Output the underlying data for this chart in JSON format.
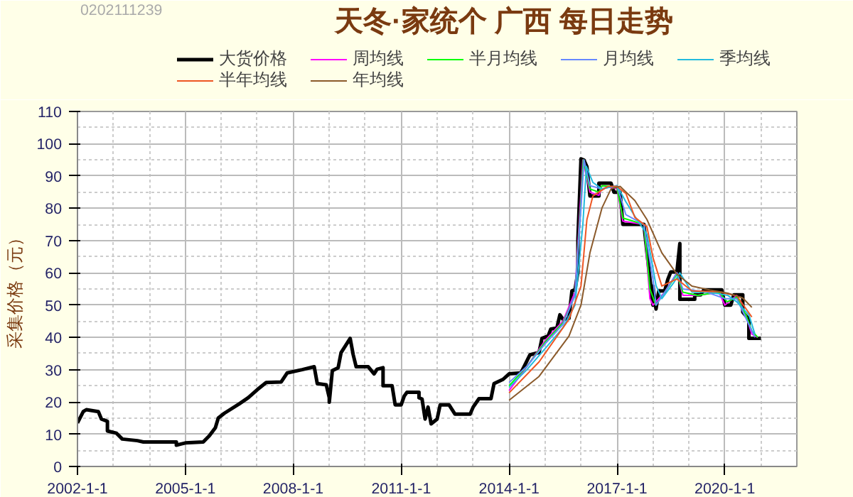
{
  "chart_data": {
    "type": "line",
    "title": "天冬·家统个 广西 每日走势",
    "ylabel": "采集价格（元）",
    "annotations": [
      "0202111239"
    ],
    "xlim": [
      "2002-01-01",
      "2022-01-01"
    ],
    "xticks": [
      {
        "value": "2002-01-01",
        "label": "2002-1-1"
      },
      {
        "value": "2005-01-01",
        "label": "2005-1-1"
      },
      {
        "value": "2008-01-01",
        "label": "2008-1-1"
      },
      {
        "value": "2011-01-01",
        "label": "2011-1-1"
      },
      {
        "value": "2014-01-01",
        "label": "2014-1-1"
      },
      {
        "value": "2017-01-01",
        "label": "2017-1-1"
      },
      {
        "value": "2020-01-01",
        "label": "2020-1-1"
      }
    ],
    "ylim": [
      0,
      110
    ],
    "yticks": [
      0,
      10,
      20,
      30,
      40,
      50,
      60,
      70,
      80,
      90,
      100,
      110
    ],
    "grid": true,
    "legend": "top",
    "line_style": "solid",
    "series": [
      {
        "name": "大货价格",
        "color": "#000000",
        "x": [
          "2002-01",
          "2002-03",
          "2002-04",
          "2002-08",
          "2002-09",
          "2002-11",
          "2002-11",
          "2003-02",
          "2003-04",
          "2003-09",
          "2003-11",
          "2004-10",
          "2004-10",
          "2005-01",
          "2005-07",
          "2005-09",
          "2005-11",
          "2005-12",
          "2006-02",
          "2006-07",
          "2006-10",
          "2007-01",
          "2007-04",
          "2007-09",
          "2007-11",
          "2008-04",
          "2008-08",
          "2008-09",
          "2008-12",
          "2009-01",
          "2009-01",
          "2009-02",
          "2009-04",
          "2009-05",
          "2009-07",
          "2009-08",
          "2009-09",
          "2009-10",
          "2010-02",
          "2010-04",
          "2010-05",
          "2010-07",
          "2010-07",
          "2010-10",
          "2010-11",
          "2011-01",
          "2011-02",
          "2011-03",
          "2011-07",
          "2011-07",
          "2011-08",
          "2011-09",
          "2011-10",
          "2011-11",
          "2012-01",
          "2012-02",
          "2012-05",
          "2012-07",
          "2012-12",
          "2013-01",
          "2013-03",
          "2013-07",
          "2013-08",
          "2013-11",
          "2014-01",
          "2014-05",
          "2014-06",
          "2014-08",
          "2014-11",
          "2014-12",
          "2015-02",
          "2015-03",
          "2015-05",
          "2015-06",
          "2015-07",
          "2015-09",
          "2015-10",
          "2015-11",
          "2015-12",
          "2015-12",
          "2016-01",
          "2016-02",
          "2016-03",
          "2016-04",
          "2016-07",
          "2016-07",
          "2016-11",
          "2016-12",
          "2017-02",
          "2017-03",
          "2017-10",
          "2017-11",
          "2018-01",
          "2018-01",
          "2018-02",
          "2018-03",
          "2018-05",
          "2018-06",
          "2018-07",
          "2018-09",
          "2018-10",
          "2018-10",
          "2019-03",
          "2019-03",
          "2019-05",
          "2019-06",
          "2019-12",
          "2020-01",
          "2020-03",
          "2020-04",
          "2020-07",
          "2020-07",
          "2020-09",
          "2020-09",
          "2021-01"
        ],
        "values": [
          13.5,
          17,
          17.6,
          17,
          14.7,
          14,
          11,
          10.3,
          8.5,
          8,
          7.6,
          7.6,
          6.6,
          7.3,
          7.6,
          9.5,
          12,
          15,
          16.5,
          19.4,
          21.3,
          23.8,
          26,
          26.2,
          29,
          30,
          30.9,
          25.7,
          25.3,
          21.3,
          19.9,
          29.7,
          30.6,
          35.3,
          38.2,
          39.7,
          34.6,
          30.9,
          30.9,
          28.7,
          30.1,
          30.6,
          25,
          25,
          19.1,
          19.1,
          21.8,
          23,
          23,
          21.3,
          20.9,
          14.7,
          18.4,
          13.2,
          14.7,
          19.1,
          19.1,
          16.2,
          16.2,
          18.4,
          21,
          21,
          25.7,
          27,
          28.7,
          29,
          30.9,
          34.6,
          35.3,
          39.7,
          40.4,
          42.6,
          42.9,
          47,
          45.6,
          45.9,
          54.4,
          54.7,
          60.3,
          70.6,
          95.3,
          94.9,
          92.9,
          83.8,
          83.8,
          87.8,
          87.8,
          85,
          85,
          75,
          75,
          66.2,
          50,
          55.9,
          48.8,
          54.4,
          54.4,
          58,
          60.3,
          60.3,
          69.1,
          51.8,
          51.8,
          53.2,
          53.2,
          54.7,
          54.7,
          50,
          50,
          53.2,
          53.2,
          47.8,
          45.6,
          39.7,
          39.7
        ]
      },
      {
        "name": "周均线",
        "color": "#ff00ff",
        "x": [
          "2014-01",
          "2014-07",
          "2015-01",
          "2015-07",
          "2015-11",
          "2016-01",
          "2016-01-20",
          "2016-04",
          "2016-07",
          "2016-08",
          "2017-01",
          "2017-03",
          "2017-10",
          "2017-12",
          "2018-01",
          "2018-05",
          "2018-09",
          "2018-11",
          "2019-04",
          "2019-11",
          "2020-01",
          "2020-05",
          "2020-08",
          "2020-10",
          "2020-12"
        ],
        "values": [
          23.5,
          31,
          39,
          45,
          54,
          85,
          95,
          85,
          84,
          87,
          86,
          76,
          75,
          52,
          50,
          54,
          60,
          53,
          53,
          54,
          50,
          53,
          47,
          41,
          40
        ]
      },
      {
        "name": "半月均线",
        "color": "#00ff00",
        "x": [
          "2014-01",
          "2014-07",
          "2015-01",
          "2015-07",
          "2015-11",
          "2016-01",
          "2016-01-25",
          "2016-04",
          "2016-07",
          "2016-08",
          "2017-01",
          "2017-03",
          "2017-10",
          "2017-12",
          "2018-01-30",
          "2018-05",
          "2018-09",
          "2018-11",
          "2019-04",
          "2019-11",
          "2020-01-25",
          "2020-05",
          "2020-08",
          "2020-10",
          "2020-12"
        ],
        "values": [
          25,
          31,
          38.5,
          44.5,
          53,
          82,
          95,
          86,
          85,
          87,
          86.5,
          77,
          75,
          55,
          50,
          54,
          59.5,
          54,
          53,
          54,
          51,
          52.5,
          47,
          42,
          40
        ]
      },
      {
        "name": "月均线",
        "color": "#6688ff",
        "x": [
          "2014-01",
          "2014-07",
          "2015-01",
          "2015-07",
          "2015-11",
          "2016-01",
          "2016-02",
          "2016-04",
          "2016-08",
          "2017-01",
          "2017-04",
          "2017-10",
          "2018-01",
          "2018-02",
          "2018-05",
          "2018-09",
          "2018-11",
          "2019-07",
          "2020-01",
          "2020-05",
          "2020-09",
          "2020-11"
        ],
        "values": [
          26,
          31,
          38,
          44,
          53,
          80,
          95,
          87,
          86,
          87,
          78,
          75,
          58,
          50,
          54,
          60,
          55,
          54,
          52,
          52,
          44,
          40
        ]
      },
      {
        "name": "季均线",
        "color": "#22bbdd",
        "x": [
          "2014-01",
          "2014-07",
          "2015-01",
          "2015-07",
          "2015-11",
          "2016-01-20",
          "2016-02-25",
          "2016-05",
          "2016-08",
          "2017-01",
          "2017-04",
          "2017-08",
          "2017-11",
          "2018-02",
          "2018-04",
          "2018-08",
          "2018-10",
          "2019-02",
          "2019-08",
          "2020-02",
          "2020-05",
          "2020-09",
          "2020-11"
        ],
        "values": [
          24.5,
          30,
          36.5,
          43,
          50,
          75,
          93,
          88,
          86,
          87,
          82,
          76,
          72,
          56,
          52,
          57,
          60,
          54,
          54,
          53,
          51,
          47,
          41
        ]
      },
      {
        "name": "半年均线",
        "color": "#ee5522",
        "x": [
          "2014-01",
          "2014-11",
          "2015-09",
          "2016-01",
          "2016-03",
          "2016-05",
          "2016-10",
          "2017-01",
          "2017-04",
          "2017-07",
          "2017-11",
          "2018-01",
          "2018-04",
          "2018-09",
          "2019-02",
          "2019-11",
          "2020-05",
          "2020-10"
        ],
        "values": [
          22.8,
          32.4,
          45.6,
          55.9,
          76.5,
          83.8,
          86.8,
          86.8,
          84.6,
          77.2,
          74.3,
          64.7,
          55.9,
          58.1,
          54.4,
          54.1,
          52.9,
          46.3
        ]
      },
      {
        "name": "年均线",
        "color": "#8b5a2b",
        "x": [
          "2014-01",
          "2014-11",
          "2015-09",
          "2016-01",
          "2016-04",
          "2016-08",
          "2016-11",
          "2017-02",
          "2017-07",
          "2017-11",
          "2018-04",
          "2018-09",
          "2019-02",
          "2019-08",
          "2020-02",
          "2020-07",
          "2020-10"
        ],
        "values": [
          20.5,
          27.9,
          40.4,
          50,
          66.2,
          80.1,
          86,
          86.8,
          82.4,
          76.5,
          66.2,
          59.6,
          55.9,
          54.7,
          53.7,
          52.2,
          49.3
        ]
      }
    ]
  }
}
